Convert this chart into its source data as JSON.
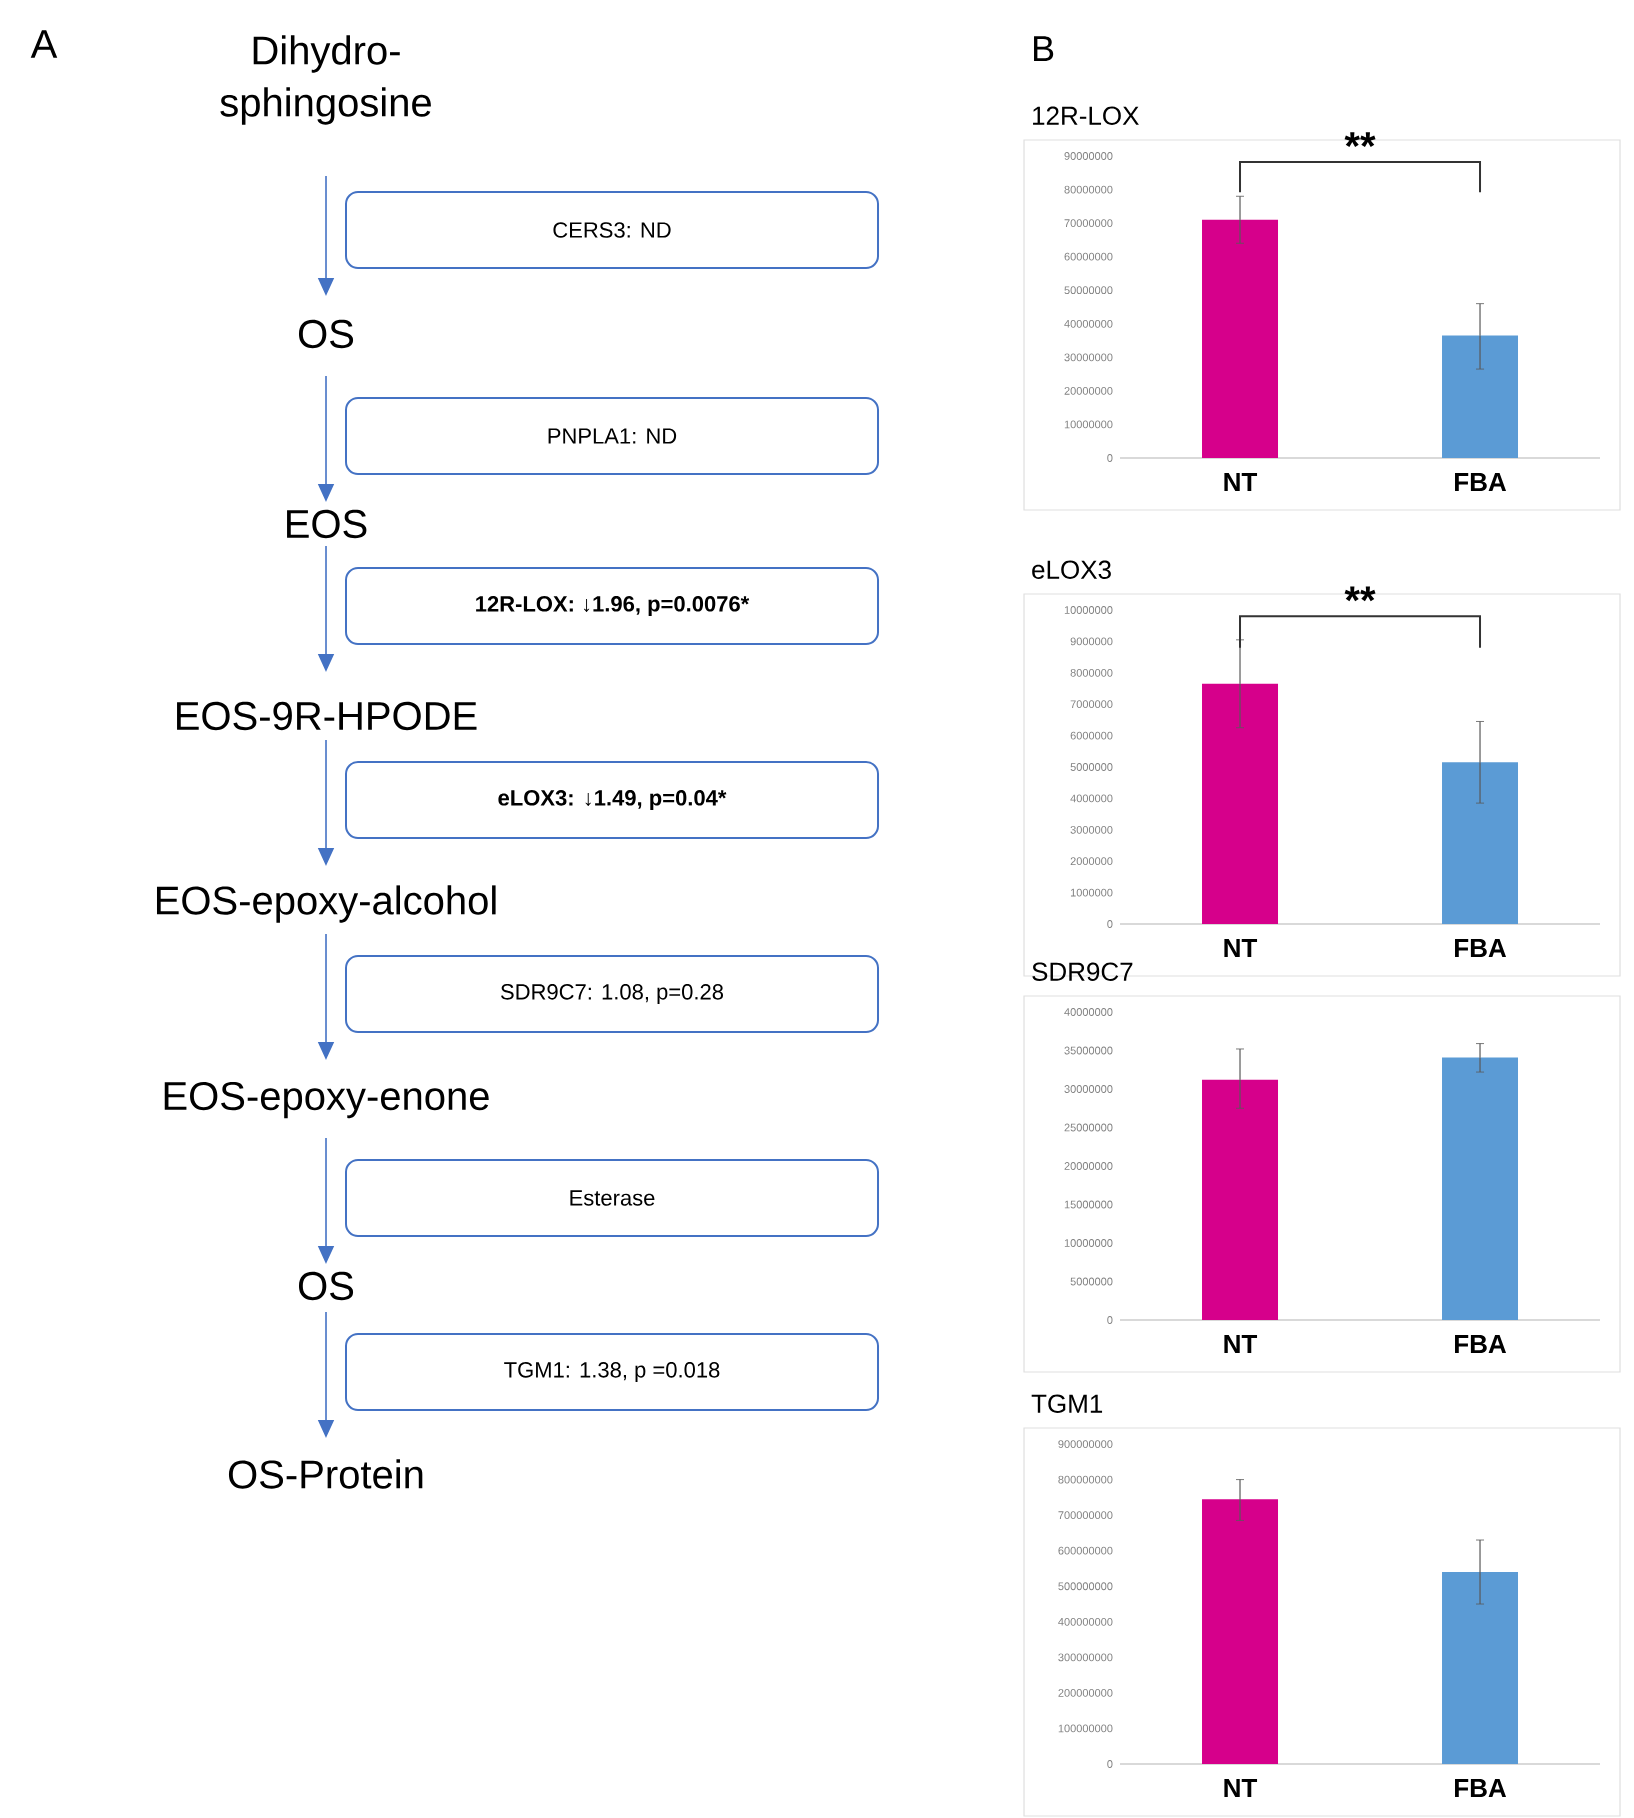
{
  "chart_data": [
    {
      "type": "other",
      "title": "A",
      "annotations": [
        "Dihydro-sphingosine",
        "CERS3: ND",
        "OS",
        "PNPLA1: ND",
        "EOS",
        "12R-LOX: ↓1.96, p=0.0076*",
        "EOS-9R-HPODE",
        "eLOX3: ↓1.49, p=0.04*",
        "EOS-epoxy-alcohol",
        "SDR9C7: 1.08, p=0.28",
        "EOS-epoxy-enone",
        "Esterase",
        "OS",
        "TGM1: 1.38, p =0.018",
        "OS-Protein"
      ]
    },
    {
      "type": "bar",
      "title": "12R-LOX",
      "annotations": [
        "B",
        "**"
      ],
      "categories": [
        "NT",
        "FBA"
      ],
      "values": [
        71000000,
        36500000
      ],
      "errors": [
        [
          64000000,
          78000000
        ],
        [
          26500000,
          46000000
        ]
      ],
      "colors": [
        "#d6008b",
        "#5b9bd5"
      ],
      "ylim": [
        0,
        90000000
      ],
      "yticks": [
        0,
        10000000,
        20000000,
        30000000,
        40000000,
        50000000,
        60000000,
        70000000,
        80000000,
        90000000
      ]
    },
    {
      "type": "bar",
      "title": "eLOX3",
      "annotations": [
        "**"
      ],
      "categories": [
        "NT",
        "FBA"
      ],
      "values": [
        7650000,
        5150000
      ],
      "errors": [
        [
          6250000,
          9050000
        ],
        [
          3850000,
          6450000
        ]
      ],
      "colors": [
        "#d6008b",
        "#5b9bd5"
      ],
      "ylim": [
        0,
        10000000
      ],
      "yticks": [
        0,
        1000000,
        2000000,
        3000000,
        4000000,
        5000000,
        6000000,
        7000000,
        8000000,
        9000000,
        10000000
      ]
    },
    {
      "type": "bar",
      "title": "SDR9C7",
      "categories": [
        "NT",
        "FBA"
      ],
      "values": [
        31200000,
        34100000
      ],
      "errors": [
        [
          27500000,
          35200000
        ],
        [
          32200000,
          35900000
        ]
      ],
      "colors": [
        "#d6008b",
        "#5b9bd5"
      ],
      "ylim": [
        0,
        40000000
      ],
      "yticks": [
        0,
        5000000,
        10000000,
        15000000,
        20000000,
        25000000,
        30000000,
        35000000,
        40000000
      ]
    },
    {
      "type": "bar",
      "title": "TGM1",
      "categories": [
        "NT",
        "FBA"
      ],
      "values": [
        745000000,
        540000000
      ],
      "errors": [
        [
          685000000,
          800000000
        ],
        [
          450000000,
          630000000
        ]
      ],
      "colors": [
        "#d6008b",
        "#5b9bd5"
      ],
      "ylim": [
        0,
        900000000
      ],
      "yticks": [
        0,
        100000000,
        200000000,
        300000000,
        400000000,
        500000000,
        600000000,
        700000000,
        800000000,
        900000000
      ]
    }
  ]
}
